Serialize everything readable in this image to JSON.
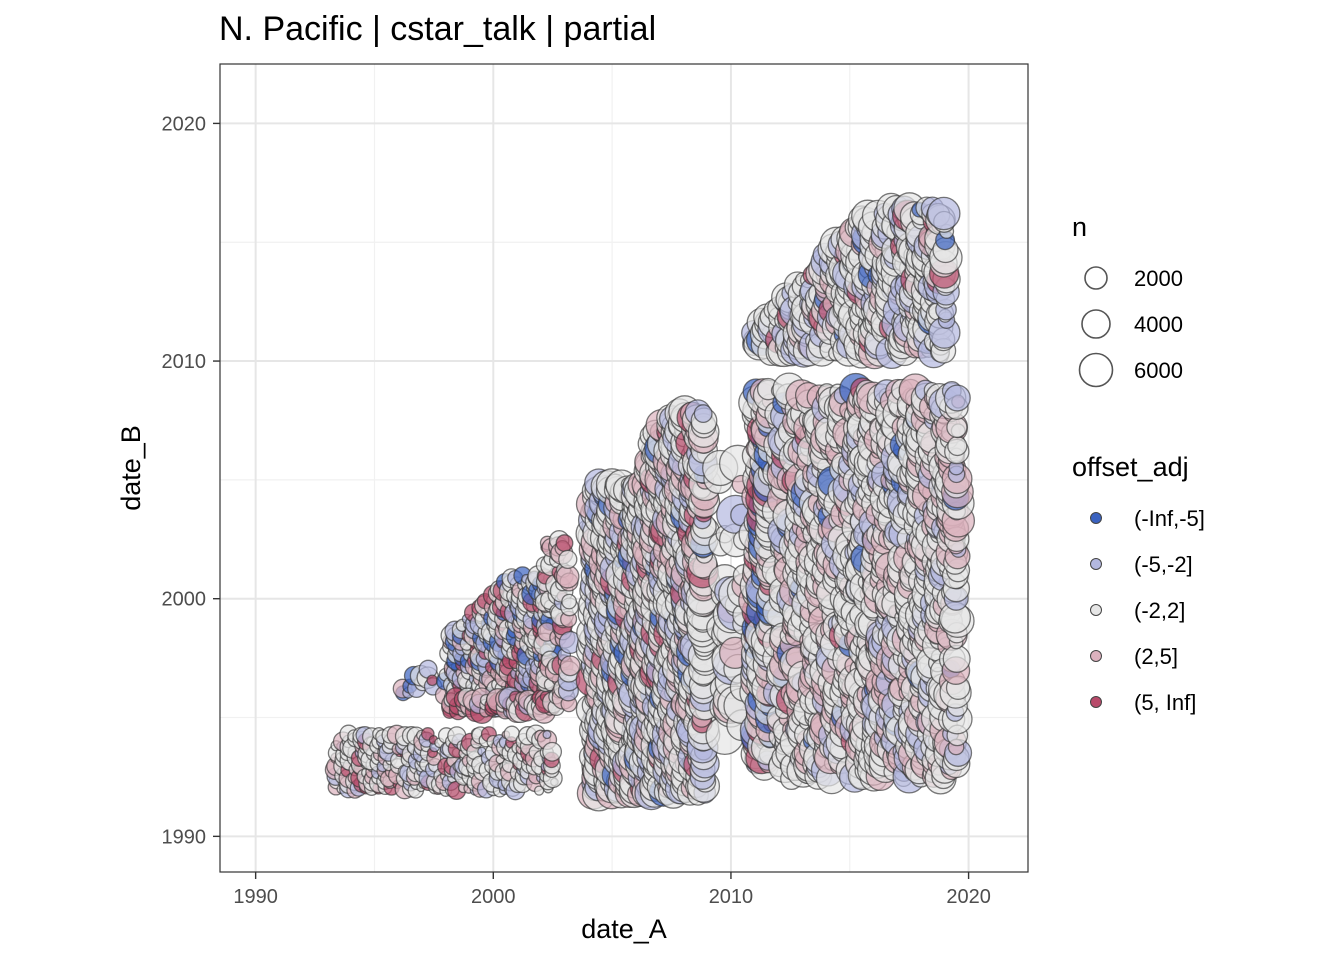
{
  "chart_data": {
    "type": "scatter",
    "title": "N. Pacific | cstar_talk | partial",
    "xlabel": "date_A",
    "ylabel": "date_B",
    "xlim": [
      1988.5,
      2022.5
    ],
    "ylim": [
      1988.5,
      2022.5
    ],
    "x_ticks": [
      1990,
      2000,
      2010,
      2020
    ],
    "y_ticks": [
      1990,
      2000,
      2010,
      2020
    ],
    "grid": true,
    "legend_position": "right",
    "size_legend": {
      "title": "n",
      "entries": [
        {
          "label": "2000",
          "value": 2000
        },
        {
          "label": "4000",
          "value": 4000
        },
        {
          "label": "6000",
          "value": 6000
        }
      ]
    },
    "color_legend": {
      "title": "offset_adj",
      "entries": [
        {
          "label": "(-Inf,-5]",
          "color": "#3a62c0"
        },
        {
          "label": "(-5,-2]",
          "color": "#b3b8e0"
        },
        {
          "label": "(-2,2]",
          "color": "#e6e6e6"
        },
        {
          "label": "(2,5]",
          "color": "#dcb2be"
        },
        {
          "label": "(5, Inf]",
          "color": "#b84a6a"
        }
      ]
    },
    "point_groups": [
      {
        "x": [
          1993.4,
          1995.8
        ],
        "y": [
          1992.0,
          1994.3
        ],
        "n": 700,
        "density": 1.0,
        "mix": [
          0,
          0.12,
          0.62,
          0.18,
          0.08
        ]
      },
      {
        "x": [
          1996.0,
          2002.6
        ],
        "y": [
          1992.0,
          1994.3
        ],
        "n": 650,
        "density": 0.75,
        "mix": [
          0,
          0.15,
          0.6,
          0.15,
          0.1
        ]
      },
      {
        "x": [
          1996.2,
          1998.0
        ],
        "y": [
          1996.0,
          1997.2
        ],
        "n": 900,
        "density": 0.6,
        "mix": [
          0.3,
          0.2,
          0.2,
          0.15,
          0.15
        ]
      },
      {
        "x": [
          1998.2,
          2002.6
        ],
        "y": [
          1995.4,
          2001.0
        ],
        "n": 800,
        "density": 1.0,
        "mix": [
          0.12,
          0.18,
          0.5,
          0.1,
          0.1
        ]
      },
      {
        "x": [
          1998.2,
          2002.6
        ],
        "y": [
          1995.3,
          1995.9
        ],
        "n": 1000,
        "density": 1.0,
        "mix": [
          0,
          0.1,
          0.3,
          0.3,
          0.3
        ]
      },
      {
        "x": [
          2002.2,
          2003.4
        ],
        "y": [
          1995.4,
          2002.6
        ],
        "n": 900,
        "density": 0.55,
        "mix": [
          0,
          0.15,
          0.5,
          0.25,
          0.1
        ]
      },
      {
        "x": [
          2004.2,
          2006.6
        ],
        "y": [
          1991.8,
          2004.8
        ],
        "n": 1900,
        "density": 1.0,
        "mix": [
          0.04,
          0.14,
          0.62,
          0.16,
          0.04
        ]
      },
      {
        "x": [
          2006.6,
          2009.0
        ],
        "y": [
          1991.8,
          2007.8
        ],
        "n": 1900,
        "density": 1.0,
        "mix": [
          0.02,
          0.18,
          0.62,
          0.14,
          0.04
        ]
      },
      {
        "x": [
          2009.5,
          2010.6
        ],
        "y": [
          1994.0,
          2006.5
        ],
        "n": 2600,
        "density": 0.18,
        "mix": [
          0,
          0.1,
          0.8,
          0.1,
          0
        ]
      },
      {
        "x": [
          2011.1,
          2011.6
        ],
        "y": [
          1993.0,
          2008.8
        ],
        "n": 2100,
        "density": 1.0,
        "mix": [
          0.18,
          0.08,
          0.5,
          0.16,
          0.08
        ]
      },
      {
        "x": [
          2012.0,
          2015.5
        ],
        "y": [
          1992.5,
          2008.8
        ],
        "n": 1900,
        "density": 0.55,
        "mix": [
          0.03,
          0.1,
          0.62,
          0.23,
          0.02
        ]
      },
      {
        "x": [
          2015.5,
          2019.6
        ],
        "y": [
          1992.5,
          2008.8
        ],
        "n": 1900,
        "density": 0.65,
        "mix": [
          0.02,
          0.12,
          0.66,
          0.2,
          0
        ]
      },
      {
        "x": [
          2011.0,
          2019.0
        ],
        "y": [
          2010.4,
          2016.5
        ],
        "n": 1900,
        "density": 0.7,
        "mix": [
          0.02,
          0.18,
          0.64,
          0.12,
          0.04
        ]
      }
    ]
  }
}
